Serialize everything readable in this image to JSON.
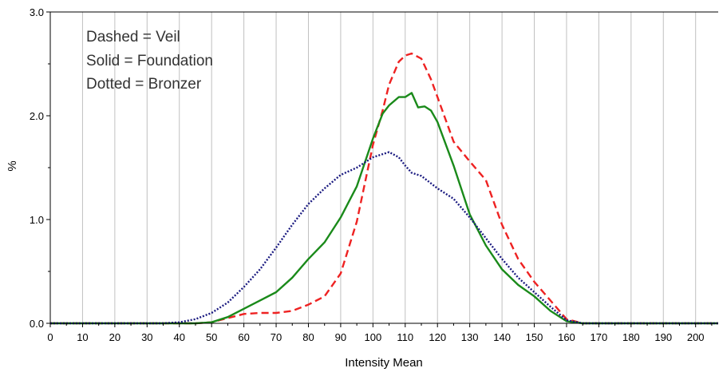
{
  "chart_data": {
    "type": "line",
    "xlabel": "Intensity Mean",
    "ylabel": "%",
    "xlim": [
      0,
      207
    ],
    "ylim": [
      0,
      3.0
    ],
    "x_ticks": [
      0,
      10,
      20,
      30,
      40,
      50,
      60,
      70,
      80,
      90,
      100,
      110,
      120,
      130,
      140,
      150,
      160,
      170,
      180,
      190,
      200
    ],
    "y_ticks": [
      "0.0",
      "1.0",
      "2.0",
      "3.0"
    ],
    "grid": "vertical",
    "annotations": [
      "Dashed = Veil",
      "Solid = Foundation",
      "Dotted = Bronzer"
    ],
    "series": [
      {
        "name": "Veil",
        "style": "dashed",
        "color": "#ee2222",
        "x": [
          0,
          45,
          50,
          55,
          60,
          65,
          70,
          75,
          80,
          85,
          90,
          95,
          100,
          103,
          105,
          108,
          110,
          112,
          115,
          118,
          120,
          125,
          130,
          135,
          140,
          145,
          150,
          155,
          160,
          165,
          207
        ],
        "y": [
          0,
          0,
          0.01,
          0.05,
          0.09,
          0.1,
          0.1,
          0.12,
          0.18,
          0.26,
          0.48,
          0.98,
          1.72,
          2.05,
          2.3,
          2.52,
          2.58,
          2.6,
          2.55,
          2.35,
          2.18,
          1.75,
          1.56,
          1.38,
          0.95,
          0.62,
          0.4,
          0.22,
          0.04,
          0,
          0
        ]
      },
      {
        "name": "Foundation",
        "style": "solid",
        "color": "#1a8a1a",
        "x": [
          0,
          45,
          50,
          55,
          60,
          65,
          70,
          75,
          80,
          85,
          90,
          95,
          100,
          103,
          105,
          108,
          110,
          112,
          114,
          116,
          118,
          120,
          125,
          130,
          135,
          140,
          145,
          150,
          155,
          160,
          165,
          207
        ],
        "y": [
          0,
          0,
          0.01,
          0.06,
          0.14,
          0.22,
          0.3,
          0.44,
          0.62,
          0.78,
          1.02,
          1.32,
          1.78,
          2.02,
          2.1,
          2.18,
          2.18,
          2.22,
          2.08,
          2.09,
          2.05,
          1.94,
          1.52,
          1.05,
          0.75,
          0.52,
          0.37,
          0.26,
          0.12,
          0.02,
          0,
          0
        ]
      },
      {
        "name": "Bronzer",
        "style": "dotted",
        "color": "#1a1a80",
        "x": [
          0,
          35,
          40,
          45,
          50,
          55,
          60,
          65,
          70,
          75,
          80,
          85,
          90,
          95,
          100,
          105,
          108,
          110,
          112,
          115,
          120,
          125,
          130,
          135,
          140,
          145,
          150,
          155,
          160,
          165,
          207
        ],
        "y": [
          0,
          0,
          0.01,
          0.04,
          0.1,
          0.2,
          0.35,
          0.52,
          0.73,
          0.95,
          1.15,
          1.3,
          1.43,
          1.5,
          1.6,
          1.65,
          1.6,
          1.52,
          1.45,
          1.42,
          1.3,
          1.2,
          1.02,
          0.82,
          0.62,
          0.44,
          0.3,
          0.16,
          0.03,
          0,
          0
        ]
      }
    ]
  }
}
